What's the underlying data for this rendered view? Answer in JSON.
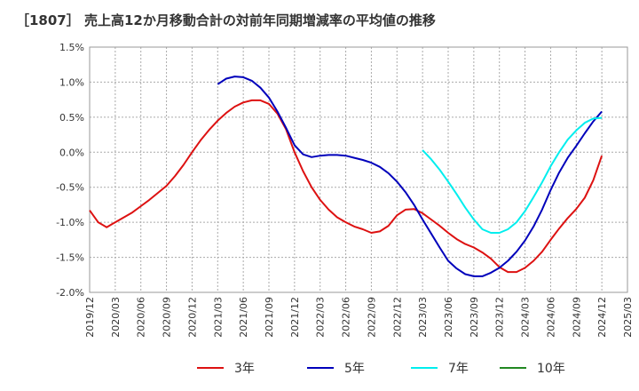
{
  "chart_data": {
    "type": "line",
    "title": "［1807］ 売上高12か月移動合計の対前年同期増減率の平均値の推移",
    "xlabel": "",
    "ylabel": "",
    "x_ticks": [
      "2019/12",
      "2020/03",
      "2020/06",
      "2020/09",
      "2020/12",
      "2021/03",
      "2021/06",
      "2021/09",
      "2021/12",
      "2022/03",
      "2022/06",
      "2022/09",
      "2022/12",
      "2023/03",
      "2023/06",
      "2023/09",
      "2023/12",
      "2024/03",
      "2024/06",
      "2024/09",
      "2024/12",
      "2025/03"
    ],
    "y_ticks": [
      "1.5%",
      "1.0%",
      "0.5%",
      "0.0%",
      "-0.5%",
      "-1.0%",
      "-1.5%",
      "-2.0%"
    ],
    "ylim": [
      -2.0,
      1.5
    ],
    "grid": true,
    "legend_position": "bottom",
    "series": [
      {
        "name": "3年",
        "color": "#dd1111",
        "points": [
          [
            "2019/12",
            -0.83
          ],
          [
            "2020/01",
            -1.0
          ],
          [
            "2020/02",
            -1.07
          ],
          [
            "2020/03",
            -1.0
          ],
          [
            "2020/04",
            -0.93
          ],
          [
            "2020/05",
            -0.86
          ],
          [
            "2020/06",
            -0.77
          ],
          [
            "2020/07",
            -0.68
          ],
          [
            "2020/08",
            -0.58
          ],
          [
            "2020/09",
            -0.48
          ],
          [
            "2020/10",
            -0.34
          ],
          [
            "2020/11",
            -0.18
          ],
          [
            "2020/12",
            0.0
          ],
          [
            "2021/01",
            0.17
          ],
          [
            "2021/02",
            0.32
          ],
          [
            "2021/03",
            0.45
          ],
          [
            "2021/04",
            0.56
          ],
          [
            "2021/05",
            0.65
          ],
          [
            "2021/06",
            0.71
          ],
          [
            "2021/07",
            0.74
          ],
          [
            "2021/08",
            0.74
          ],
          [
            "2021/09",
            0.69
          ],
          [
            "2021/10",
            0.55
          ],
          [
            "2021/11",
            0.33
          ],
          [
            "2021/12",
            0.0
          ],
          [
            "2022/01",
            -0.27
          ],
          [
            "2022/02",
            -0.5
          ],
          [
            "2022/03",
            -0.68
          ],
          [
            "2022/04",
            -0.82
          ],
          [
            "2022/05",
            -0.93
          ],
          [
            "2022/06",
            -1.0
          ],
          [
            "2022/07",
            -1.06
          ],
          [
            "2022/08",
            -1.1
          ],
          [
            "2022/09",
            -1.15
          ],
          [
            "2022/10",
            -1.13
          ],
          [
            "2022/11",
            -1.05
          ],
          [
            "2022/12",
            -0.9
          ],
          [
            "2023/01",
            -0.82
          ],
          [
            "2023/02",
            -0.81
          ],
          [
            "2023/03",
            -0.87
          ],
          [
            "2023/04",
            -0.96
          ],
          [
            "2023/05",
            -1.05
          ],
          [
            "2023/06",
            -1.15
          ],
          [
            "2023/07",
            -1.24
          ],
          [
            "2023/08",
            -1.31
          ],
          [
            "2023/09",
            -1.36
          ],
          [
            "2023/10",
            -1.43
          ],
          [
            "2023/11",
            -1.52
          ],
          [
            "2023/12",
            -1.64
          ],
          [
            "2024/01",
            -1.71
          ],
          [
            "2024/02",
            -1.71
          ],
          [
            "2024/03",
            -1.65
          ],
          [
            "2024/04",
            -1.55
          ],
          [
            "2024/05",
            -1.42
          ],
          [
            "2024/06",
            -1.25
          ],
          [
            "2024/07",
            -1.09
          ],
          [
            "2024/08",
            -0.94
          ],
          [
            "2024/09",
            -0.81
          ],
          [
            "2024/10",
            -0.65
          ],
          [
            "2024/11",
            -0.4
          ],
          [
            "2024/12",
            -0.05
          ]
        ]
      },
      {
        "name": "5年",
        "color": "#0000bb",
        "points": [
          [
            "2021/03",
            0.97
          ],
          [
            "2021/04",
            1.05
          ],
          [
            "2021/05",
            1.08
          ],
          [
            "2021/06",
            1.07
          ],
          [
            "2021/07",
            1.02
          ],
          [
            "2021/08",
            0.92
          ],
          [
            "2021/09",
            0.78
          ],
          [
            "2021/10",
            0.58
          ],
          [
            "2021/11",
            0.35
          ],
          [
            "2021/12",
            0.1
          ],
          [
            "2022/01",
            -0.03
          ],
          [
            "2022/02",
            -0.07
          ],
          [
            "2022/03",
            -0.05
          ],
          [
            "2022/04",
            -0.04
          ],
          [
            "2022/05",
            -0.04
          ],
          [
            "2022/06",
            -0.05
          ],
          [
            "2022/07",
            -0.08
          ],
          [
            "2022/08",
            -0.11
          ],
          [
            "2022/09",
            -0.15
          ],
          [
            "2022/10",
            -0.21
          ],
          [
            "2022/11",
            -0.3
          ],
          [
            "2022/12",
            -0.42
          ],
          [
            "2023/01",
            -0.57
          ],
          [
            "2023/02",
            -0.75
          ],
          [
            "2023/03",
            -0.96
          ],
          [
            "2023/04",
            -1.16
          ],
          [
            "2023/05",
            -1.36
          ],
          [
            "2023/06",
            -1.55
          ],
          [
            "2023/07",
            -1.66
          ],
          [
            "2023/08",
            -1.74
          ],
          [
            "2023/09",
            -1.77
          ],
          [
            "2023/10",
            -1.77
          ],
          [
            "2023/11",
            -1.72
          ],
          [
            "2023/12",
            -1.65
          ],
          [
            "2024/01",
            -1.55
          ],
          [
            "2024/02",
            -1.42
          ],
          [
            "2024/03",
            -1.26
          ],
          [
            "2024/04",
            -1.06
          ],
          [
            "2024/05",
            -0.82
          ],
          [
            "2024/06",
            -0.54
          ],
          [
            "2024/07",
            -0.29
          ],
          [
            "2024/08",
            -0.08
          ],
          [
            "2024/09",
            0.09
          ],
          [
            "2024/10",
            0.27
          ],
          [
            "2024/11",
            0.44
          ],
          [
            "2024/12",
            0.58
          ]
        ]
      },
      {
        "name": "7年",
        "color": "#00eeee",
        "points": [
          [
            "2023/03",
            0.03
          ],
          [
            "2023/04",
            -0.1
          ],
          [
            "2023/05",
            -0.25
          ],
          [
            "2023/06",
            -0.42
          ],
          [
            "2023/07",
            -0.6
          ],
          [
            "2023/08",
            -0.79
          ],
          [
            "2023/09",
            -0.96
          ],
          [
            "2023/10",
            -1.1
          ],
          [
            "2023/11",
            -1.15
          ],
          [
            "2023/12",
            -1.15
          ],
          [
            "2024/01",
            -1.1
          ],
          [
            "2024/02",
            -1.0
          ],
          [
            "2024/03",
            -0.84
          ],
          [
            "2024/04",
            -0.64
          ],
          [
            "2024/05",
            -0.43
          ],
          [
            "2024/06",
            -0.2
          ],
          [
            "2024/07",
            0.0
          ],
          [
            "2024/08",
            0.18
          ],
          [
            "2024/09",
            0.31
          ],
          [
            "2024/10",
            0.42
          ],
          [
            "2024/11",
            0.48
          ],
          [
            "2024/12",
            0.49
          ]
        ]
      },
      {
        "name": "10年",
        "color": "#228822",
        "points": []
      }
    ]
  }
}
